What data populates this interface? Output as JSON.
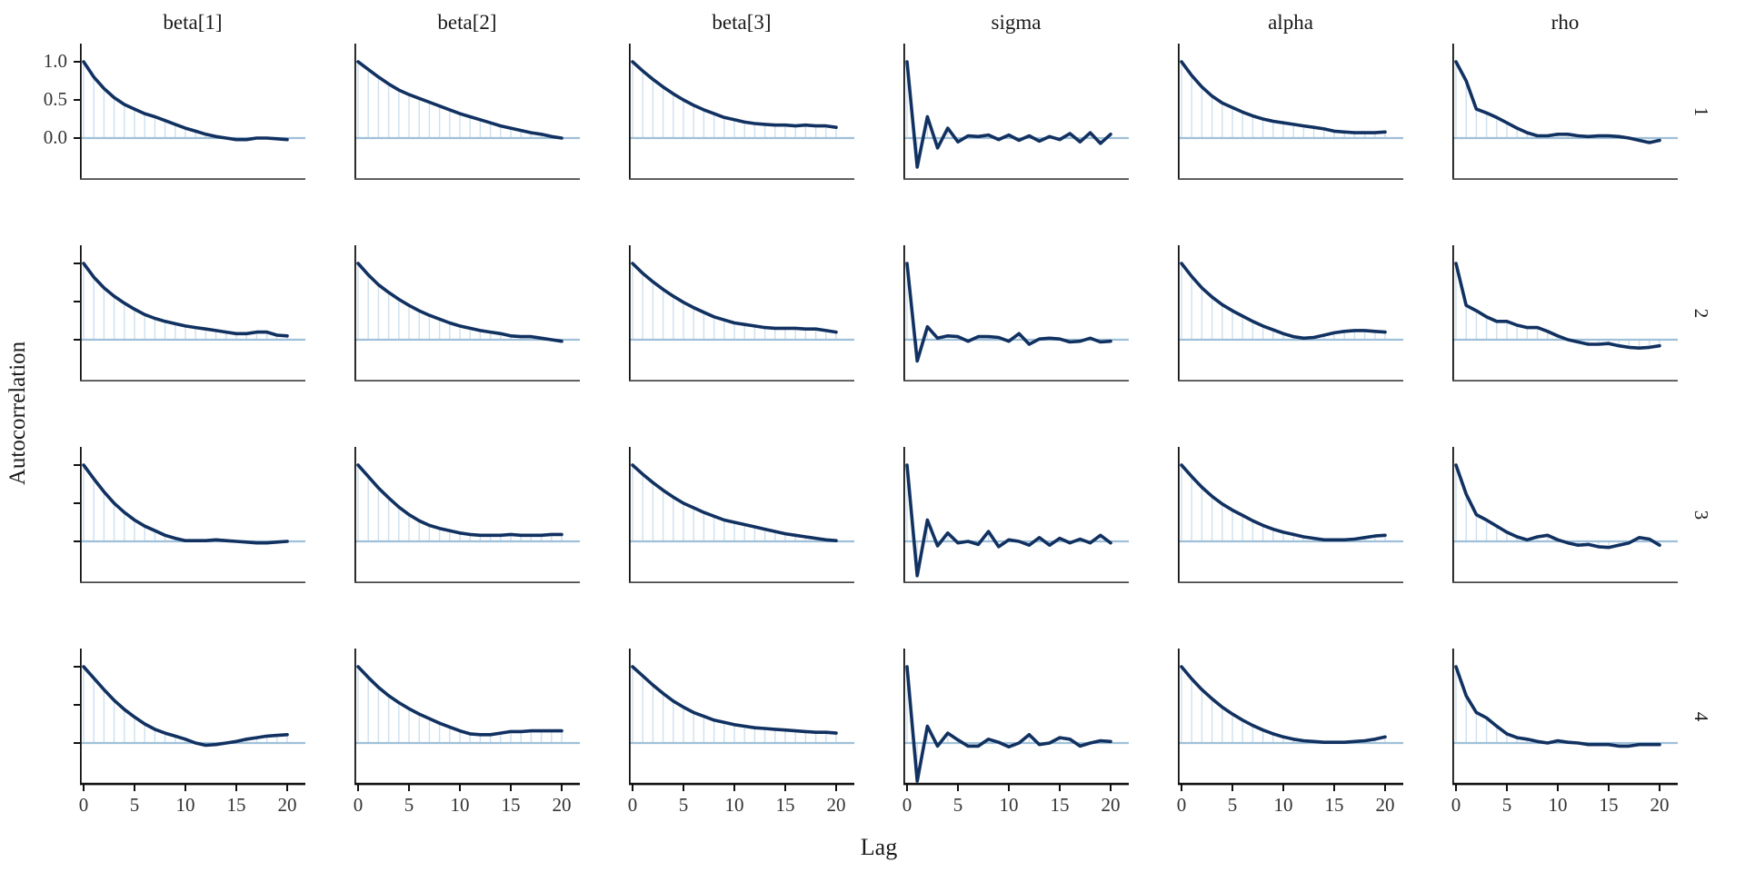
{
  "figure": {
    "ylabel": "Autocorrelation",
    "xlabel": "Lag",
    "column_titles": [
      "beta[1]",
      "beta[2]",
      "beta[3]",
      "sigma",
      "alpha",
      "rho"
    ],
    "row_strip_labels": [
      "1",
      "2",
      "3",
      "4"
    ],
    "y_tick_labels": [
      "1.0",
      "0.5",
      "0.0"
    ],
    "x_tick_labels": [
      "0",
      "5",
      "10",
      "15",
      "20"
    ],
    "colors": {
      "acf_line": "#113161",
      "lag_stem": "#cfe0ee",
      "zero_line": "#9fc0d8",
      "axis": "#111111",
      "panel_bottom_line": "#4a4a4a",
      "text": "#1a1a1a",
      "tick_text": "#333333",
      "background": "#ffffff"
    }
  },
  "chart_data": {
    "type": "line",
    "title": "",
    "xlabel": "Lag",
    "ylabel": "Autocorrelation",
    "legend": "none",
    "grid": "off",
    "x": [
      0,
      1,
      2,
      3,
      4,
      5,
      6,
      7,
      8,
      9,
      10,
      11,
      12,
      13,
      14,
      15,
      16,
      17,
      18,
      19,
      20
    ],
    "xlim": [
      0,
      20
    ],
    "ylim": [
      -0.55,
      1.0
    ],
    "y_ticks": [
      1.0,
      0.5,
      0.0
    ],
    "x_ticks": [
      0,
      5,
      10,
      15,
      20
    ],
    "facets": {
      "columns": [
        "beta[1]",
        "beta[2]",
        "beta[3]",
        "sigma",
        "alpha",
        "rho"
      ],
      "rows": [
        "1",
        "2",
        "3",
        "4"
      ],
      "column_meaning": "parameter",
      "row_meaning": "chain"
    },
    "panels": [
      {
        "row": "1",
        "column": "beta[1]",
        "values": [
          1.0,
          0.8,
          0.65,
          0.53,
          0.44,
          0.38,
          0.32,
          0.28,
          0.23,
          0.18,
          0.13,
          0.09,
          0.05,
          0.02,
          0.0,
          -0.02,
          -0.02,
          0.0,
          0.0,
          -0.01,
          -0.02
        ]
      },
      {
        "row": "1",
        "column": "beta[2]",
        "values": [
          1.0,
          0.9,
          0.8,
          0.71,
          0.63,
          0.57,
          0.52,
          0.47,
          0.42,
          0.37,
          0.32,
          0.28,
          0.24,
          0.2,
          0.16,
          0.13,
          0.1,
          0.07,
          0.05,
          0.02,
          0.0
        ]
      },
      {
        "row": "1",
        "column": "beta[3]",
        "values": [
          1.0,
          0.88,
          0.77,
          0.67,
          0.58,
          0.5,
          0.43,
          0.37,
          0.32,
          0.27,
          0.24,
          0.21,
          0.19,
          0.18,
          0.17,
          0.17,
          0.16,
          0.17,
          0.16,
          0.16,
          0.14
        ]
      },
      {
        "row": "1",
        "column": "sigma",
        "values": [
          1.0,
          -0.38,
          0.28,
          -0.13,
          0.13,
          -0.05,
          0.03,
          0.02,
          0.04,
          -0.02,
          0.04,
          -0.03,
          0.03,
          -0.04,
          0.02,
          -0.02,
          0.06,
          -0.05,
          0.07,
          -0.07,
          0.05
        ]
      },
      {
        "row": "1",
        "column": "alpha",
        "values": [
          1.0,
          0.82,
          0.67,
          0.55,
          0.46,
          0.4,
          0.34,
          0.29,
          0.25,
          0.22,
          0.2,
          0.18,
          0.16,
          0.14,
          0.12,
          0.09,
          0.08,
          0.07,
          0.07,
          0.07,
          0.08
        ]
      },
      {
        "row": "1",
        "column": "rho",
        "values": [
          1.0,
          0.75,
          0.38,
          0.33,
          0.27,
          0.2,
          0.13,
          0.07,
          0.03,
          0.03,
          0.05,
          0.05,
          0.03,
          0.02,
          0.03,
          0.03,
          0.02,
          0.0,
          -0.03,
          -0.06,
          -0.03
        ]
      },
      {
        "row": "2",
        "column": "beta[1]",
        "values": [
          1.0,
          0.82,
          0.68,
          0.57,
          0.48,
          0.4,
          0.33,
          0.28,
          0.24,
          0.21,
          0.18,
          0.16,
          0.14,
          0.12,
          0.1,
          0.08,
          0.08,
          0.1,
          0.1,
          0.06,
          0.05
        ]
      },
      {
        "row": "2",
        "column": "beta[2]",
        "values": [
          1.0,
          0.85,
          0.72,
          0.62,
          0.53,
          0.45,
          0.38,
          0.32,
          0.27,
          0.22,
          0.18,
          0.15,
          0.12,
          0.1,
          0.08,
          0.05,
          0.04,
          0.04,
          0.02,
          0.0,
          -0.02
        ]
      },
      {
        "row": "2",
        "column": "beta[3]",
        "values": [
          1.0,
          0.87,
          0.76,
          0.66,
          0.57,
          0.49,
          0.42,
          0.36,
          0.3,
          0.26,
          0.22,
          0.2,
          0.18,
          0.16,
          0.15,
          0.15,
          0.15,
          0.14,
          0.14,
          0.12,
          0.1
        ]
      },
      {
        "row": "2",
        "column": "sigma",
        "values": [
          1.0,
          -0.28,
          0.17,
          0.02,
          0.05,
          0.04,
          -0.02,
          0.04,
          0.04,
          0.03,
          -0.02,
          0.08,
          -0.06,
          0.01,
          0.02,
          0.01,
          -0.03,
          -0.02,
          0.02,
          -0.03,
          -0.02
        ]
      },
      {
        "row": "2",
        "column": "alpha",
        "values": [
          1.0,
          0.83,
          0.68,
          0.56,
          0.46,
          0.38,
          0.31,
          0.24,
          0.18,
          0.13,
          0.08,
          0.04,
          0.02,
          0.03,
          0.06,
          0.09,
          0.11,
          0.12,
          0.12,
          0.11,
          0.1
        ]
      },
      {
        "row": "2",
        "column": "rho",
        "values": [
          1.0,
          0.45,
          0.38,
          0.3,
          0.24,
          0.24,
          0.19,
          0.16,
          0.16,
          0.11,
          0.05,
          0.0,
          -0.03,
          -0.06,
          -0.06,
          -0.05,
          -0.08,
          -0.1,
          -0.11,
          -0.1,
          -0.08
        ]
      },
      {
        "row": "3",
        "column": "beta[1]",
        "values": [
          1.0,
          0.82,
          0.65,
          0.5,
          0.38,
          0.28,
          0.2,
          0.14,
          0.08,
          0.04,
          0.01,
          0.01,
          0.01,
          0.02,
          0.01,
          0.0,
          -0.01,
          -0.02,
          -0.02,
          -0.01,
          0.0
        ]
      },
      {
        "row": "3",
        "column": "beta[2]",
        "values": [
          1.0,
          0.85,
          0.7,
          0.57,
          0.45,
          0.35,
          0.27,
          0.21,
          0.17,
          0.14,
          0.11,
          0.09,
          0.08,
          0.08,
          0.08,
          0.09,
          0.08,
          0.08,
          0.08,
          0.09,
          0.09
        ]
      },
      {
        "row": "3",
        "column": "beta[3]",
        "values": [
          1.0,
          0.88,
          0.77,
          0.67,
          0.58,
          0.5,
          0.44,
          0.38,
          0.33,
          0.28,
          0.25,
          0.22,
          0.19,
          0.16,
          0.13,
          0.1,
          0.08,
          0.06,
          0.04,
          0.02,
          0.01
        ]
      },
      {
        "row": "3",
        "column": "sigma",
        "values": [
          1.0,
          -0.45,
          0.28,
          -0.06,
          0.11,
          -0.02,
          0.0,
          -0.04,
          0.13,
          -0.07,
          0.02,
          0.0,
          -0.05,
          0.05,
          -0.05,
          0.04,
          -0.02,
          0.03,
          -0.02,
          0.08,
          -0.02
        ]
      },
      {
        "row": "3",
        "column": "alpha",
        "values": [
          1.0,
          0.85,
          0.71,
          0.59,
          0.49,
          0.41,
          0.34,
          0.27,
          0.21,
          0.16,
          0.12,
          0.09,
          0.06,
          0.04,
          0.02,
          0.02,
          0.02,
          0.03,
          0.05,
          0.07,
          0.08
        ]
      },
      {
        "row": "3",
        "column": "rho",
        "values": [
          1.0,
          0.62,
          0.35,
          0.28,
          0.2,
          0.12,
          0.06,
          0.02,
          0.06,
          0.08,
          0.02,
          -0.02,
          -0.05,
          -0.04,
          -0.07,
          -0.08,
          -0.05,
          -0.02,
          0.05,
          0.03,
          -0.05
        ]
      },
      {
        "row": "4",
        "column": "beta[1]",
        "values": [
          1.0,
          0.85,
          0.7,
          0.56,
          0.44,
          0.34,
          0.25,
          0.18,
          0.13,
          0.09,
          0.05,
          0.0,
          -0.03,
          -0.02,
          0.0,
          0.02,
          0.05,
          0.07,
          0.09,
          0.1,
          0.11
        ]
      },
      {
        "row": "4",
        "column": "beta[2]",
        "values": [
          1.0,
          0.86,
          0.73,
          0.62,
          0.53,
          0.45,
          0.38,
          0.32,
          0.26,
          0.21,
          0.16,
          0.12,
          0.11,
          0.11,
          0.13,
          0.15,
          0.15,
          0.16,
          0.16,
          0.16,
          0.16
        ]
      },
      {
        "row": "4",
        "column": "beta[3]",
        "values": [
          1.0,
          0.88,
          0.76,
          0.65,
          0.55,
          0.47,
          0.4,
          0.35,
          0.3,
          0.27,
          0.24,
          0.22,
          0.2,
          0.19,
          0.18,
          0.17,
          0.16,
          0.15,
          0.14,
          0.14,
          0.13
        ]
      },
      {
        "row": "4",
        "column": "sigma",
        "values": [
          1.0,
          -0.5,
          0.22,
          -0.04,
          0.13,
          0.04,
          -0.04,
          -0.04,
          0.05,
          0.01,
          -0.05,
          0.0,
          0.11,
          -0.02,
          0.0,
          0.07,
          0.05,
          -0.04,
          0.0,
          0.03,
          0.02
        ]
      },
      {
        "row": "4",
        "column": "alpha",
        "values": [
          1.0,
          0.84,
          0.7,
          0.58,
          0.47,
          0.38,
          0.3,
          0.23,
          0.17,
          0.12,
          0.08,
          0.05,
          0.03,
          0.02,
          0.01,
          0.01,
          0.01,
          0.02,
          0.03,
          0.05,
          0.08
        ]
      },
      {
        "row": "4",
        "column": "rho",
        "values": [
          1.0,
          0.62,
          0.4,
          0.33,
          0.22,
          0.12,
          0.07,
          0.05,
          0.02,
          0.0,
          0.03,
          0.01,
          0.0,
          -0.02,
          -0.02,
          -0.02,
          -0.04,
          -0.04,
          -0.02,
          -0.02,
          -0.02
        ]
      }
    ]
  }
}
